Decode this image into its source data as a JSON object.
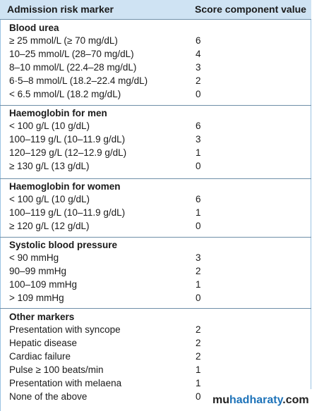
{
  "header": {
    "col1": "Admission risk marker",
    "col2": "Score component value"
  },
  "sections": [
    {
      "title": "Blood urea",
      "rows": [
        {
          "label": "≥ 25 mmol/L (≥ 70 mg/dL)",
          "value": "6"
        },
        {
          "label": "10–25 mmol/L (28–70 mg/dL)",
          "value": "4"
        },
        {
          "label": "8–10 mmol/L (22.4–28 mg/dL)",
          "value": "3"
        },
        {
          "label": "6·5–8 mmol/L (18.2–22.4 mg/dL)",
          "value": "2"
        },
        {
          "label": "< 6.5 mmol/L (18.2 mg/dL)",
          "value": "0"
        }
      ]
    },
    {
      "title": "Haemoglobin for men",
      "rows": [
        {
          "label": "< 100 g/L (10 g/dL)",
          "value": "6"
        },
        {
          "label": "100–119 g/L (10–11.9 g/dL)",
          "value": "3"
        },
        {
          "label": "120–129 g/L (12–12.9 g/dL)",
          "value": "1"
        },
        {
          "label": "≥ 130 g/L (13 g/dL)",
          "value": "0"
        }
      ]
    },
    {
      "title": "Haemoglobin for women",
      "rows": [
        {
          "label": "< 100 g/L (10 g/dL)",
          "value": "6"
        },
        {
          "label": "100–119 g/L (10–11.9 g/dL)",
          "value": "1"
        },
        {
          "label": "≥ 120 g/L (12 g/dL)",
          "value": "0"
        }
      ]
    },
    {
      "title": "Systolic blood pressure",
      "rows": [
        {
          "label": "< 90 mmHg",
          "value": "3"
        },
        {
          "label": "90–99 mmHg",
          "value": "2"
        },
        {
          "label": "100–109 mmHg",
          "value": "1"
        },
        {
          "label": "> 109 mmHg",
          "value": "0"
        }
      ]
    },
    {
      "title": "Other markers",
      "rows": [
        {
          "label": "Presentation with syncope",
          "value": "2"
        },
        {
          "label": "Hepatic disease",
          "value": "2"
        },
        {
          "label": "Cardiac failure",
          "value": "2"
        },
        {
          "label": "Pulse ≥ 100 beats/min",
          "value": "1"
        },
        {
          "label": "Presentation with melaena",
          "value": "1"
        },
        {
          "label": "None of the above",
          "value": "0"
        }
      ]
    }
  ],
  "watermark": {
    "part1": "mu",
    "part2": "hadharaty",
    "part3": ".com"
  },
  "colors": {
    "header_bg": "#cfe3f3",
    "border": "#9bc3e3",
    "accent": "#1e73b9"
  }
}
